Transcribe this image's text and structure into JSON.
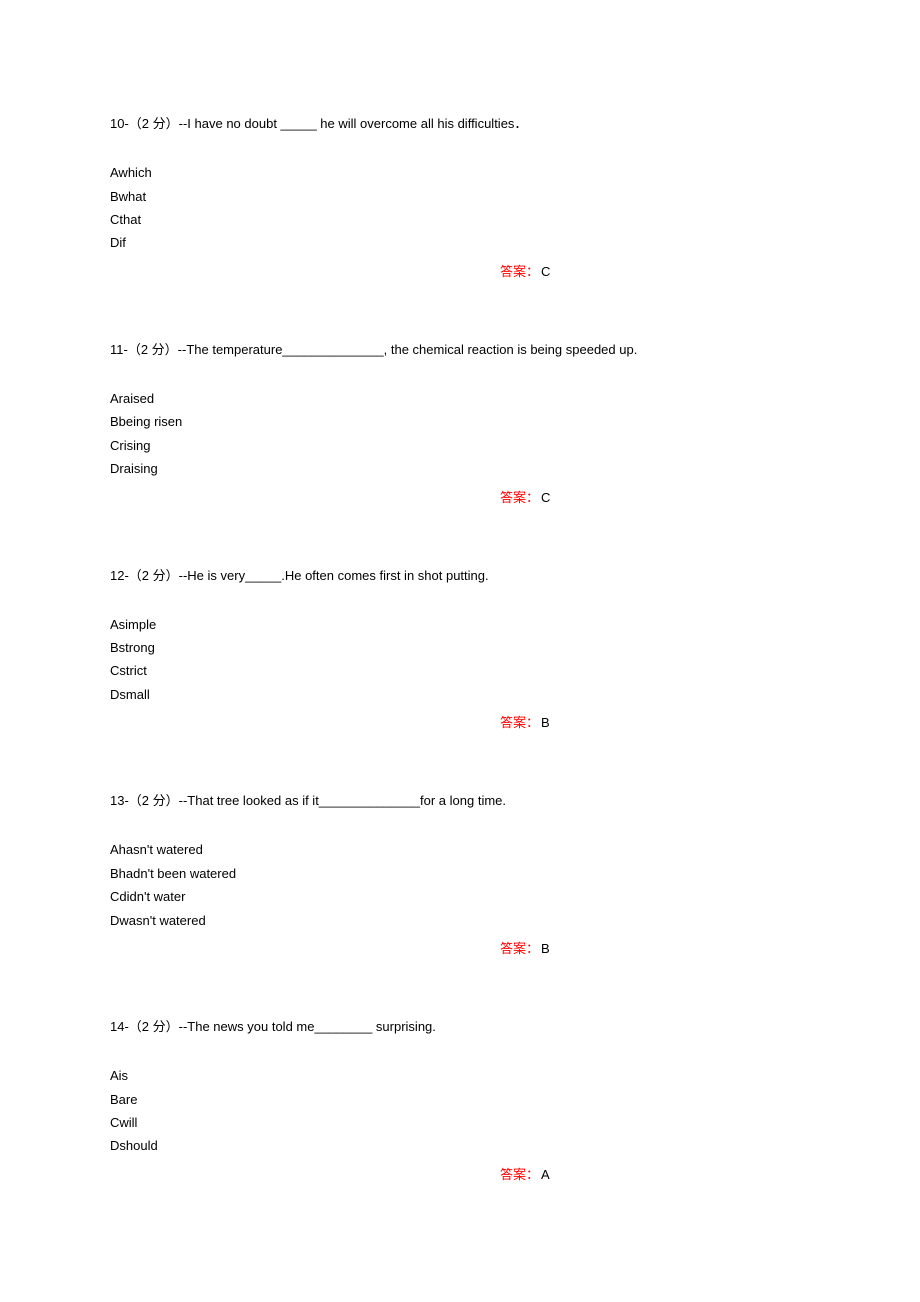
{
  "questions": [
    {
      "number": "10-",
      "points": "（2 分）",
      "stem": "--I have no doubt _____ he will overcome all his difficulties．",
      "options": [
        "Awhich",
        "Bwhat",
        "Cthat",
        "Dif"
      ],
      "answer_label": "答案：",
      "answer_value": "C"
    },
    {
      "number": "11-",
      "points": "（2 分）",
      "stem": "--The temperature______________, the chemical reaction is being speeded up.",
      "options": [
        "Araised",
        "Bbeing risen",
        "Crising",
        "Draising"
      ],
      "answer_label": "答案：",
      "answer_value": "C"
    },
    {
      "number": "12-",
      "points": "（2 分）",
      "stem": "--He is very_____.He often comes first in shot putting.",
      "options": [
        "Asimple",
        "Bstrong",
        "Cstrict",
        "Dsmall"
      ],
      "answer_label": "答案：",
      "answer_value": "B"
    },
    {
      "number": "13-",
      "points": "（2 分）",
      "stem": "--That tree looked as if it______________for a long time.",
      "options": [
        "Ahasn't watered",
        "Bhadn't been watered",
        "Cdidn't water",
        "Dwasn't watered"
      ],
      "answer_label": "答案：",
      "answer_value": "B"
    },
    {
      "number": "14-",
      "points": "（2 分）",
      "stem": "--The news you told me________ surprising.",
      "options": [
        "Ais",
        "Bare",
        "Cwill",
        "Dshould"
      ],
      "answer_label": "答案：",
      "answer_value": "A"
    }
  ]
}
